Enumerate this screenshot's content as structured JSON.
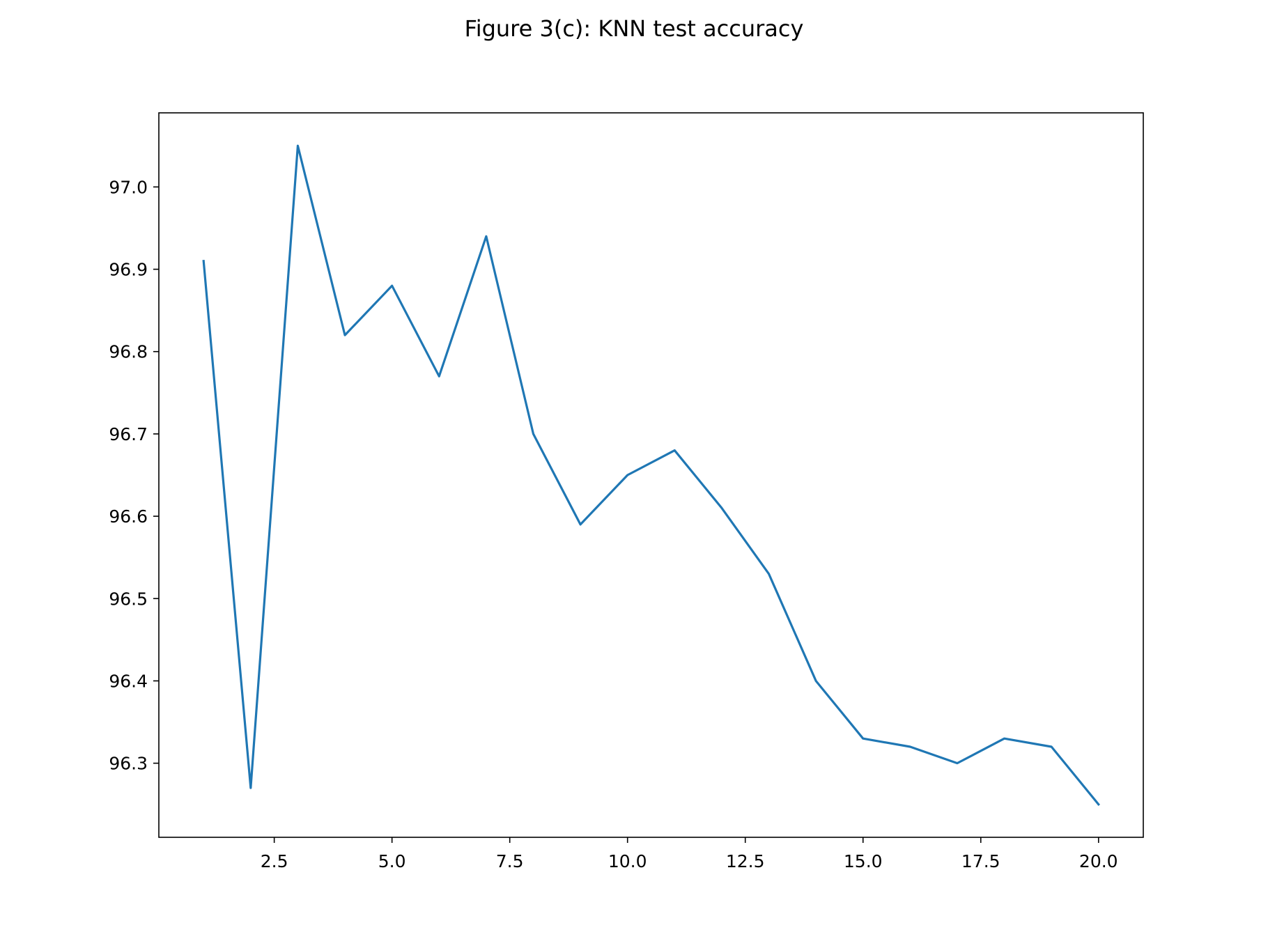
{
  "chart_data": {
    "type": "line",
    "title": "Figure 3(c): KNN test accuracy",
    "xlabel": "",
    "ylabel": "",
    "x": [
      1,
      2,
      3,
      4,
      5,
      6,
      7,
      8,
      9,
      10,
      11,
      12,
      13,
      14,
      15,
      16,
      17,
      18,
      19,
      20
    ],
    "series": [
      {
        "values": [
          96.91,
          96.27,
          97.05,
          96.82,
          96.88,
          96.77,
          96.94,
          96.7,
          96.59,
          96.65,
          96.68,
          96.61,
          96.53,
          96.4,
          96.33,
          96.32,
          96.3,
          96.33,
          96.32,
          96.25
        ],
        "color": "#1f77b4"
      }
    ],
    "xlim": [
      0.05,
      20.95
    ],
    "ylim": [
      96.21,
      97.09
    ],
    "x_ticks": [
      2.5,
      5.0,
      7.5,
      10.0,
      12.5,
      15.0,
      17.5,
      20.0
    ],
    "x_tick_labels": [
      "2.5",
      "5.0",
      "7.5",
      "10.0",
      "12.5",
      "15.0",
      "17.5",
      "20.0"
    ],
    "y_ticks": [
      96.3,
      96.4,
      96.5,
      96.6,
      96.7,
      96.8,
      96.9,
      97.0
    ],
    "y_tick_labels": [
      "96.3",
      "96.4",
      "96.5",
      "96.6",
      "96.7",
      "96.8",
      "96.9",
      "97.0"
    ],
    "grid": false,
    "legend": "none"
  }
}
